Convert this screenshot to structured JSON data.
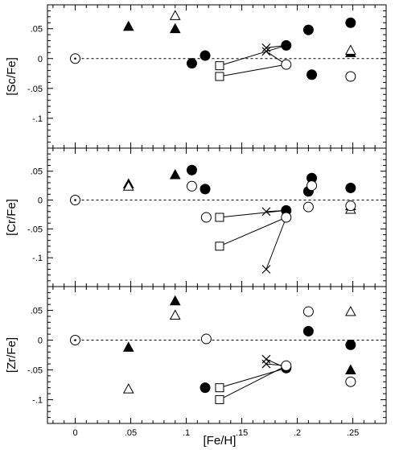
{
  "chart_data": {
    "type": "scatter",
    "xlabel": "[Fe/H]",
    "xlim": [
      -0.025,
      0.28
    ],
    "x_ticks": [
      0,
      0.05,
      0.1,
      0.15,
      0.2,
      0.25
    ],
    "x_tick_labels": [
      "0",
      ".05",
      ".1",
      ".15",
      ".2",
      ".25"
    ],
    "panels": [
      {
        "ylabel": "[Sc/Fe]",
        "ylim": [
          -0.15,
          0.09
        ],
        "y_ticks": [
          0.05,
          0,
          -0.05,
          -0.1
        ],
        "y_tick_labels": [
          ".05",
          "0",
          "-.05",
          "-.1"
        ],
        "reference_line_y": 0,
        "series": [
          {
            "marker": "filled-triangle",
            "points": [
              [
                0.048,
                0.054
              ],
              [
                0.09,
                0.05
              ],
              [
                0.248,
                0.01
              ]
            ]
          },
          {
            "marker": "open-triangle",
            "points": [
              [
                0.09,
                0.072
              ],
              [
                0.248,
                0.014
              ]
            ]
          },
          {
            "marker": "filled-circle",
            "points": [
              [
                0.105,
                -0.008
              ],
              [
                0.117,
                0.005
              ],
              [
                0.19,
                0.022
              ],
              [
                0.21,
                0.048
              ],
              [
                0.213,
                -0.027
              ],
              [
                0.248,
                0.06
              ]
            ]
          },
          {
            "marker": "open-circle",
            "points": [
              [
                0,
                0
              ],
              [
                0.19,
                -0.01
              ],
              [
                0.248,
                -0.03
              ]
            ]
          },
          {
            "marker": "open-square",
            "points": [
              [
                0.13,
                -0.012
              ],
              [
                0.13,
                -0.03
              ]
            ]
          },
          {
            "marker": "cross",
            "points": [
              [
                0.172,
                0.018
              ],
              [
                0.172,
                0.012
              ]
            ]
          }
        ],
        "segments": [
          [
            [
              0.13,
              -0.012
            ],
            [
              0.19,
              0.022
            ]
          ],
          [
            [
              0.13,
              -0.03
            ],
            [
              0.19,
              -0.01
            ]
          ],
          [
            [
              0.172,
              0.018
            ],
            [
              0.19,
              0.022
            ]
          ],
          [
            [
              0.172,
              0.012
            ],
            [
              0.19,
              -0.01
            ]
          ]
        ]
      },
      {
        "ylabel": "[Cr/Fe]",
        "ylim": [
          -0.15,
          0.09
        ],
        "y_ticks": [
          0.05,
          0,
          -0.05,
          -0.1
        ],
        "y_tick_labels": [
          ".05",
          "0",
          "-.05",
          "-.1"
        ],
        "reference_line_y": 0,
        "series": [
          {
            "marker": "filled-triangle",
            "points": [
              [
                0.048,
                0.028
              ],
              [
                0.09,
                0.044
              ],
              [
                0.248,
                -0.01
              ]
            ]
          },
          {
            "marker": "open-triangle",
            "points": [
              [
                0.048,
                0.024
              ],
              [
                0.248,
                -0.016
              ]
            ]
          },
          {
            "marker": "filled-circle",
            "points": [
              [
                0.105,
                0.052
              ],
              [
                0.117,
                0.019
              ],
              [
                0.19,
                -0.018
              ],
              [
                0.21,
                0.015
              ],
              [
                0.213,
                0.038
              ],
              [
                0.248,
                0.021
              ]
            ]
          },
          {
            "marker": "open-circle",
            "points": [
              [
                0,
                0
              ],
              [
                0.105,
                0.024
              ],
              [
                0.118,
                -0.03
              ],
              [
                0.19,
                -0.03
              ],
              [
                0.21,
                -0.012
              ],
              [
                0.213,
                0.025
              ],
              [
                0.248,
                -0.01
              ]
            ]
          },
          {
            "marker": "open-square",
            "points": [
              [
                0.13,
                -0.03
              ],
              [
                0.13,
                -0.08
              ]
            ]
          },
          {
            "marker": "cross",
            "points": [
              [
                0.172,
                -0.02
              ],
              [
                0.172,
                -0.12
              ]
            ]
          }
        ],
        "segments": [
          [
            [
              0.13,
              -0.03
            ],
            [
              0.19,
              -0.018
            ]
          ],
          [
            [
              0.13,
              -0.08
            ],
            [
              0.19,
              -0.03
            ]
          ],
          [
            [
              0.172,
              -0.02
            ],
            [
              0.19,
              -0.018
            ]
          ],
          [
            [
              0.172,
              -0.12
            ],
            [
              0.19,
              -0.03
            ]
          ]
        ]
      },
      {
        "ylabel": "[Zr/Fe]",
        "ylim": [
          -0.14,
          0.09
        ],
        "y_ticks": [
          0.05,
          0,
          -0.05,
          -0.1
        ],
        "y_tick_labels": [
          ".05",
          "0",
          "-.05",
          "-.1"
        ],
        "reference_line_y": 0,
        "series": [
          {
            "marker": "filled-triangle",
            "points": [
              [
                0.048,
                -0.012
              ],
              [
                0.09,
                0.066
              ],
              [
                0.248,
                -0.05
              ]
            ]
          },
          {
            "marker": "open-triangle",
            "points": [
              [
                0.048,
                -0.082
              ],
              [
                0.09,
                0.042
              ],
              [
                0.248,
                0.048
              ]
            ]
          },
          {
            "marker": "filled-circle",
            "points": [
              [
                0.117,
                -0.08
              ],
              [
                0.19,
                -0.047
              ],
              [
                0.21,
                0.015
              ],
              [
                0.248,
                -0.008
              ]
            ]
          },
          {
            "marker": "open-circle",
            "points": [
              [
                0,
                0
              ],
              [
                0.118,
                0.002
              ],
              [
                0.19,
                -0.043
              ],
              [
                0.21,
                0.048
              ],
              [
                0.248,
                -0.07
              ]
            ]
          },
          {
            "marker": "open-square",
            "points": [
              [
                0.13,
                -0.08
              ],
              [
                0.13,
                -0.1
              ]
            ]
          },
          {
            "marker": "cross",
            "points": [
              [
                0.172,
                -0.032
              ],
              [
                0.172,
                -0.04
              ]
            ]
          }
        ],
        "segments": [
          [
            [
              0.13,
              -0.08
            ],
            [
              0.19,
              -0.047
            ]
          ],
          [
            [
              0.13,
              -0.1
            ],
            [
              0.19,
              -0.043
            ]
          ],
          [
            [
              0.172,
              -0.032
            ],
            [
              0.19,
              -0.047
            ]
          ],
          [
            [
              0.172,
              -0.04
            ],
            [
              0.19,
              -0.043
            ]
          ]
        ]
      }
    ]
  }
}
